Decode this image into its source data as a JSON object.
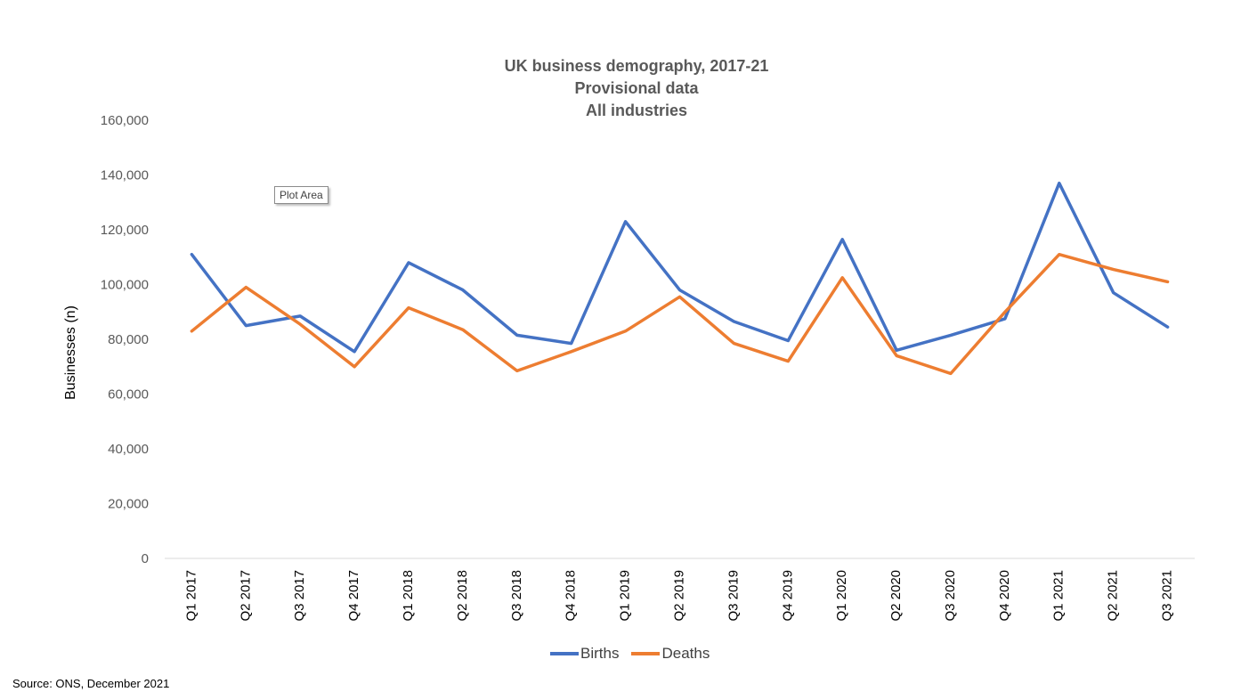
{
  "chart_data": {
    "type": "line",
    "title": [
      "UK business demography, 2017-21",
      "Provisional data",
      "All industries"
    ],
    "xlabel": "",
    "ylabel": "Businesses (n)",
    "ylim": [
      0,
      160000
    ],
    "yticks": [
      0,
      20000,
      40000,
      60000,
      80000,
      100000,
      120000,
      140000,
      160000
    ],
    "ytick_labels": [
      "0",
      "20,000",
      "40,000",
      "60,000",
      "80,000",
      "100,000",
      "120,000",
      "140,000",
      "160,000"
    ],
    "categories": [
      "Q1 2017",
      "Q2 2017",
      "Q3 2017",
      "Q4 2017",
      "Q1 2018",
      "Q2 2018",
      "Q3 2018",
      "Q4 2018",
      "Q1 2019",
      "Q2 2019",
      "Q3 2019",
      "Q4 2019",
      "Q1 2020",
      "Q2 2020",
      "Q3 2020",
      "Q4 2020",
      "Q1 2021",
      "Q2 2021",
      "Q3 2021"
    ],
    "series": [
      {
        "name": "Births",
        "color": "#4472C4",
        "values": [
          111000,
          85000,
          88500,
          75500,
          108000,
          98000,
          81500,
          78500,
          123000,
          98000,
          86500,
          79500,
          116500,
          76000,
          81500,
          87500,
          137000,
          97000,
          84500
        ]
      },
      {
        "name": "Deaths",
        "color": "#ED7D31",
        "values": [
          83000,
          99000,
          85500,
          70000,
          91500,
          83500,
          68500,
          75500,
          83000,
          95500,
          78500,
          72000,
          102500,
          74000,
          67500,
          90000,
          111000,
          105500,
          101000
        ]
      }
    ],
    "grid": false,
    "legend_position": "bottom"
  },
  "tooltip": {
    "label": "Plot Area"
  },
  "source": "Source: ONS, December 2021"
}
